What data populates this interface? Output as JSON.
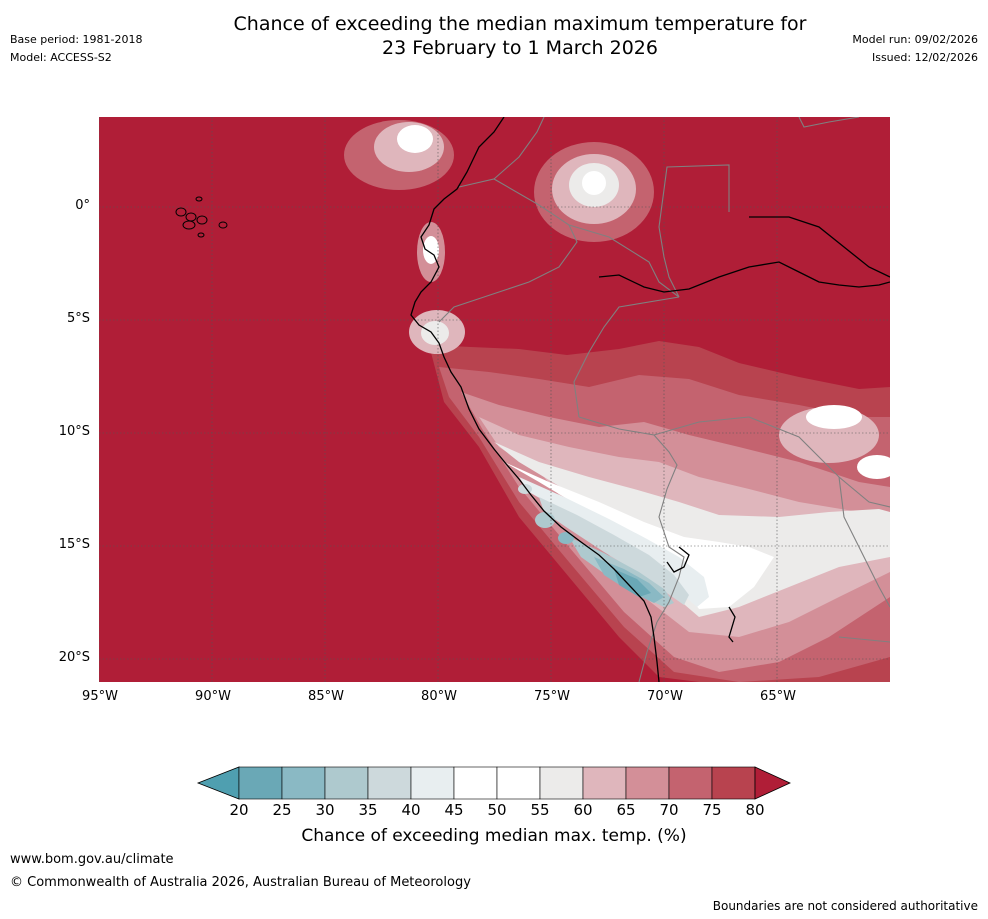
{
  "title": {
    "line1": "Chance of exceeding the median maximum temperature for",
    "line2": "23 February to 1 March 2026"
  },
  "meta": {
    "base_period": "Base period: 1981-2018",
    "model": "Model: ACCESS-S2",
    "model_run": "Model run: 09/02/2026",
    "issued": "Issued: 12/02/2026"
  },
  "map": {
    "region": "Western South America",
    "lon_range": [
      -95,
      -60
    ],
    "lat_range": [
      -21,
      4
    ],
    "lat_labels": [
      "0°",
      "5°S",
      "10°S",
      "15°S",
      "20°S"
    ],
    "lon_labels": [
      "95°W",
      "90°W",
      "85°W",
      "80°W",
      "75°W",
      "70°W",
      "65°W"
    ],
    "background_category": "80+"
  },
  "colorbar": {
    "title": "Chance of exceeding median max. temp. (%)",
    "ticks": [
      "20",
      "25",
      "30",
      "35",
      "40",
      "45",
      "50",
      "55",
      "60",
      "65",
      "70",
      "75",
      "80"
    ],
    "colors": {
      "below20": "#4f9fb0",
      "c20_25": "#6aa8b6",
      "c25_30": "#8ab9c4",
      "c30_35": "#aec9ce",
      "c35_40": "#cdd9dc",
      "c40_45": "#e8eef0",
      "c45_50": "#ffffff",
      "c50_55": "#ffffff",
      "c55_60": "#ecebea",
      "c60_65": "#dfb6bc",
      "c65_70": "#d38f98",
      "c70_75": "#c4636f",
      "c75_80": "#b8434f",
      "above80": "#b01e37"
    }
  },
  "footer": {
    "url": "www.bom.gov.au/climate",
    "copyright": "© Commonwealth of Australia 2026, Australian Bureau of Meteorology",
    "disclaimer": "Boundaries are not considered authoritative"
  }
}
